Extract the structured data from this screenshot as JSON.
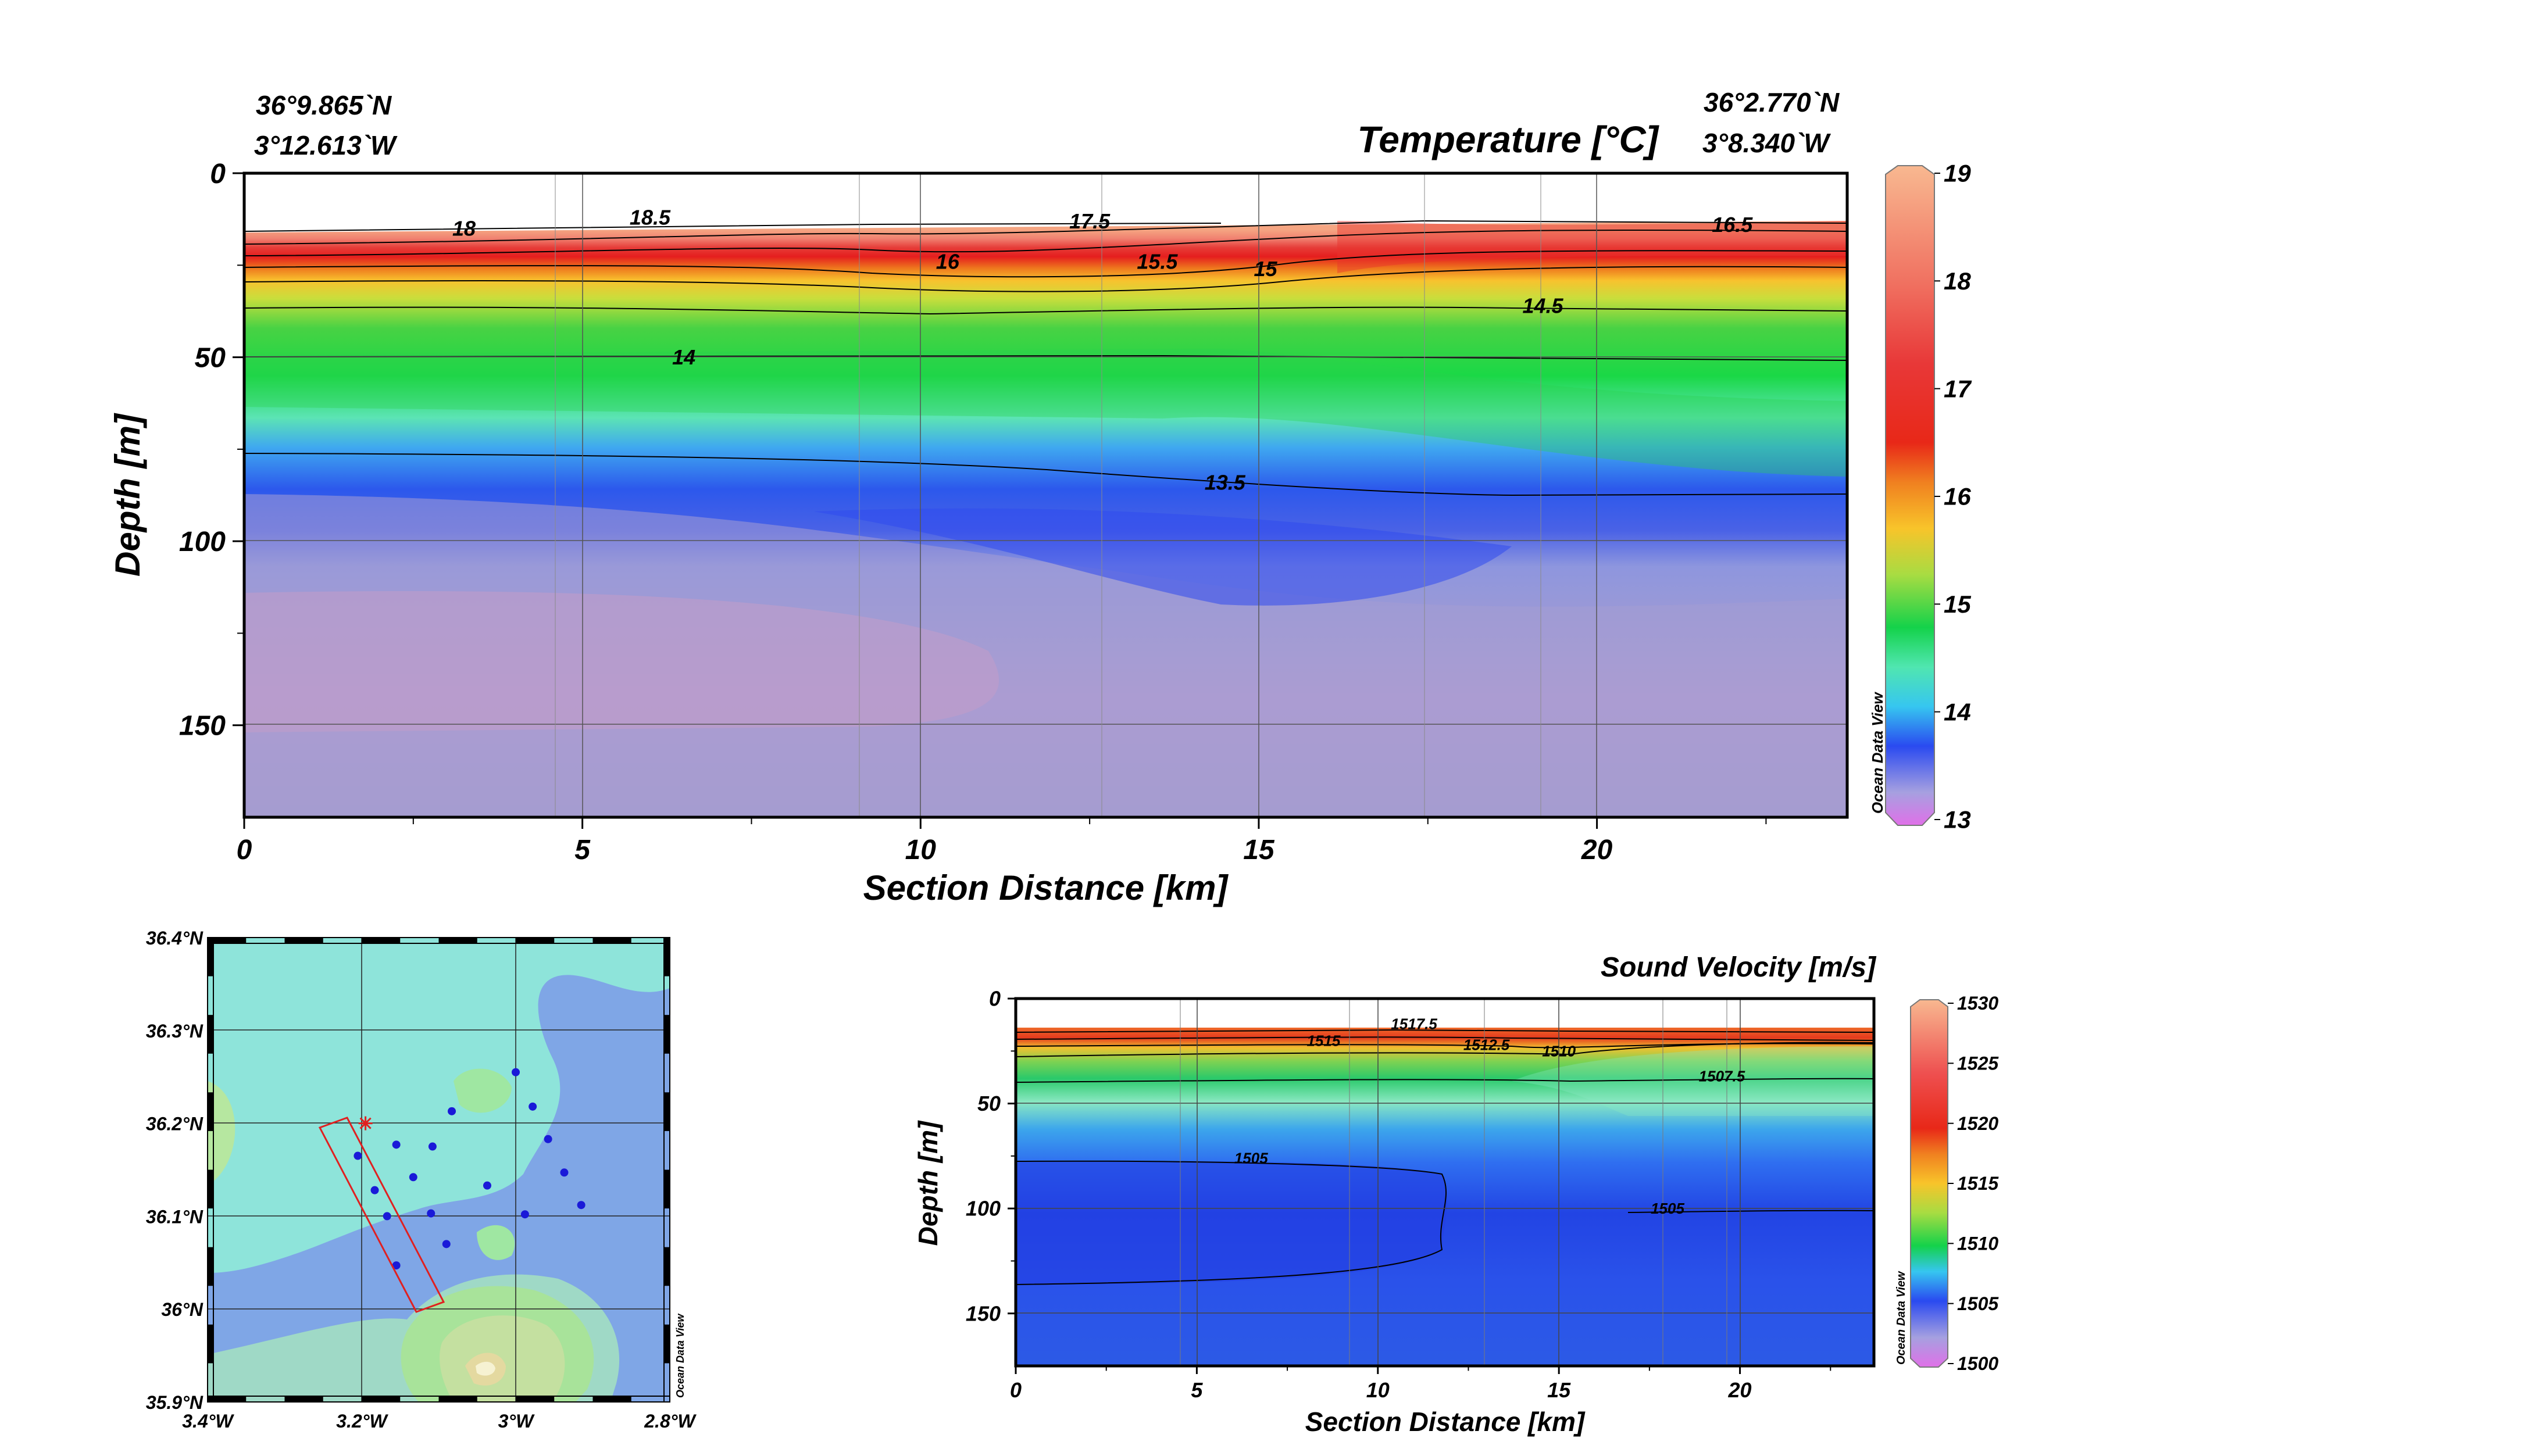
{
  "chart_data": [
    {
      "id": "temperature",
      "type": "heatmap",
      "title": "Temperature [°C]",
      "xlabel": "Section Distance [km]",
      "ylabel": "Depth [m]",
      "xlim": [
        0,
        23.7
      ],
      "ylim": [
        175,
        0
      ],
      "x_ticks": [
        "0",
        "5",
        "10",
        "15",
        "20"
      ],
      "y_ticks": [
        "0",
        "50",
        "100",
        "150"
      ],
      "start_position": {
        "lat": "36°9.865`N",
        "lon": "3°12.613`W"
      },
      "end_position": {
        "lat": "36°2.770`N",
        "lon": "3°8.340`W"
      },
      "colorbar": {
        "min": 13,
        "max": 19,
        "ticks": [
          "13",
          "14",
          "15",
          "16",
          "17",
          "18",
          "19"
        ]
      },
      "watermark": "Ocean Data View",
      "isolines": [
        {
          "value": "18",
          "x": 3.25,
          "depth": 15
        },
        {
          "value": "18.5",
          "x": 6.0,
          "depth": 12
        },
        {
          "value": "17.5",
          "x": 12.5,
          "depth": 13
        },
        {
          "value": "16.5",
          "x": 22.0,
          "depth": 14
        },
        {
          "value": "16",
          "x": 10.4,
          "depth": 24
        },
        {
          "value": "15.5",
          "x": 13.5,
          "depth": 24
        },
        {
          "value": "15",
          "x": 15.1,
          "depth": 26
        },
        {
          "value": "14.5",
          "x": 19.2,
          "depth": 36
        },
        {
          "value": "14",
          "x": 6.5,
          "depth": 50
        },
        {
          "value": "13.5",
          "x": 14.5,
          "depth": 84
        }
      ]
    },
    {
      "id": "sound_velocity",
      "type": "heatmap",
      "title": "Sound Velocity [m/s]",
      "xlabel": "Section Distance [km]",
      "ylabel": "Depth [m]",
      "xlim": [
        0,
        23.7
      ],
      "ylim": [
        175,
        0
      ],
      "x_ticks": [
        "0",
        "5",
        "10",
        "15",
        "20"
      ],
      "y_ticks": [
        "0",
        "50",
        "100",
        "150"
      ],
      "colorbar": {
        "min": 1500,
        "max": 1530,
        "ticks": [
          "1500",
          "1505",
          "1510",
          "1515",
          "1520",
          "1525",
          "1530"
        ]
      },
      "watermark": "Ocean Data View",
      "isolines": [
        {
          "value": "1517.5",
          "x": 11.0,
          "depth": 12
        },
        {
          "value": "1515",
          "x": 8.5,
          "depth": 20
        },
        {
          "value": "1512.5",
          "x": 13.0,
          "depth": 22
        },
        {
          "value": "1510",
          "x": 15.0,
          "depth": 25
        },
        {
          "value": "1507.5",
          "x": 19.5,
          "depth": 37
        },
        {
          "value": "1505",
          "x": 6.5,
          "depth": 76
        },
        {
          "value": "1505",
          "x": 18.0,
          "depth": 100
        }
      ]
    },
    {
      "id": "station_map",
      "type": "scatter",
      "x_ticks": [
        "3.4°W",
        "3.2°W",
        "3°W",
        "2.8°W"
      ],
      "y_ticks": [
        "36.4°N",
        "36.3°N",
        "36.2°N",
        "36.1°N",
        "36°N",
        "35.9°N"
      ],
      "xlim": [
        -3.4,
        -2.8
      ],
      "ylim": [
        35.9,
        36.4
      ],
      "watermark": "Ocean Data View",
      "stations": [
        {
          "lon": -3.0,
          "lat": 36.255
        },
        {
          "lon": -2.978,
          "lat": 36.218
        },
        {
          "lon": -3.083,
          "lat": 36.213
        },
        {
          "lon": -2.958,
          "lat": 36.183
        },
        {
          "lon": -3.155,
          "lat": 36.177
        },
        {
          "lon": -3.108,
          "lat": 36.175
        },
        {
          "lon": -3.205,
          "lat": 36.165
        },
        {
          "lon": -3.133,
          "lat": 36.142
        },
        {
          "lon": -2.937,
          "lat": 36.147
        },
        {
          "lon": -3.183,
          "lat": 36.128
        },
        {
          "lon": -3.037,
          "lat": 36.133
        },
        {
          "lon": -2.915,
          "lat": 36.112
        },
        {
          "lon": -3.167,
          "lat": 36.1
        },
        {
          "lon": -3.11,
          "lat": 36.103
        },
        {
          "lon": -2.988,
          "lat": 36.102
        },
        {
          "lon": -3.09,
          "lat": 36.07
        },
        {
          "lon": -3.155,
          "lat": 36.047
        }
      ],
      "section_marker": {
        "lon": -3.195,
        "lat": 36.2
      }
    }
  ]
}
